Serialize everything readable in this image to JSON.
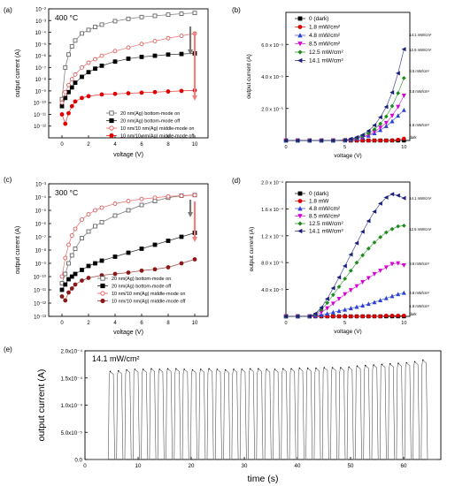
{
  "chart_data": [
    {
      "panel": "(a)",
      "type": "scatter",
      "annotation": "400 °C",
      "xlabel": "voltage (V)",
      "ylabel": "output current (A)",
      "xlim": [
        -1,
        11
      ],
      "ylim": [
        -13,
        -2
      ],
      "yscale": "log",
      "xticks": [
        0,
        2,
        4,
        6,
        8,
        10
      ],
      "xtick_labels": [
        "0",
        "2",
        "4",
        "6",
        "8",
        "10"
      ],
      "yticks": [
        -12,
        -11,
        -10,
        -9,
        -8,
        -7,
        -6,
        -5,
        -4,
        -3,
        -2
      ],
      "ytick_labels": [
        "10⁻¹²",
        "10⁻¹¹",
        "10⁻¹⁰",
        "10⁻⁹",
        "10⁻⁸",
        "10⁻⁷",
        "10⁻⁶",
        "10⁻⁵",
        "10⁻⁴",
        "10⁻³",
        "10⁻²"
      ],
      "legend_position": "bottom-right",
      "series": [
        {
          "name": "20 nm(Ag) bottom-mode on",
          "marker": "open-square",
          "color": "#555555",
          "x": [
            0,
            0.25,
            0.5,
            0.75,
            1,
            1.5,
            2,
            2.5,
            3,
            4,
            5,
            6,
            7,
            8,
            9,
            10
          ],
          "y": [
            -9.7,
            -7.0,
            -5.9,
            -5.2,
            -4.7,
            -4.1,
            -3.8,
            -3.55,
            -3.35,
            -3.05,
            -2.85,
            -2.7,
            -2.6,
            -2.5,
            -2.42,
            -2.35
          ]
        },
        {
          "name": "20 nm(Ag) bottom-mode off",
          "marker": "filled-square",
          "color": "#000000",
          "x": [
            0,
            0.25,
            0.5,
            0.75,
            1,
            1.5,
            2,
            2.5,
            3,
            4,
            5,
            6,
            7,
            8,
            9,
            10
          ],
          "y": [
            -10.3,
            -9.6,
            -9.1,
            -8.7,
            -8.3,
            -7.8,
            -7.4,
            -7.1,
            -6.85,
            -6.5,
            -6.25,
            -6.1,
            -6.0,
            -5.9,
            -5.85,
            -5.8
          ]
        },
        {
          "name": "10 nm/10 nm(Ag) middle-mode on",
          "marker": "open-circle",
          "color": "#e04a4a",
          "x": [
            0,
            0.25,
            0.5,
            0.75,
            1,
            1.5,
            2,
            2.5,
            3,
            4,
            5,
            6,
            7,
            8,
            9,
            10
          ],
          "y": [
            -10.0,
            -9.1,
            -8.5,
            -8.0,
            -7.6,
            -7.0,
            -6.6,
            -6.3,
            -6.0,
            -5.6,
            -5.3,
            -5.0,
            -4.75,
            -4.5,
            -4.3,
            -4.1
          ]
        },
        {
          "name": "10 nm/10 nm(Ag) middle-mode off",
          "marker": "filled-circle",
          "color": "#e00000",
          "x": [
            0,
            0.25,
            0.5,
            0.75,
            1,
            1.5,
            2,
            3,
            4,
            5,
            6,
            7,
            8,
            9,
            10
          ],
          "y": [
            -11.0,
            -11.8,
            -10.9,
            -10.3,
            -9.9,
            -9.6,
            -9.45,
            -9.3,
            -9.25,
            -9.2,
            -9.15,
            -9.1,
            -9.05,
            -9.0,
            -8.95
          ]
        }
      ]
    },
    {
      "panel": "(b)",
      "type": "scatter",
      "xlabel": "voltage (V)",
      "ylabel": "output current (A)",
      "xlim": [
        0,
        10.5
      ],
      "ylim": [
        0,
        8e-05
      ],
      "xticks": [
        0,
        5,
        10
      ],
      "xtick_labels": [
        "0",
        "5",
        "10"
      ],
      "yticks": [
        2e-05,
        4e-05,
        6e-05
      ],
      "ytick_labels": [
        "2.0 x 10⁻⁵",
        "4.0 x 10⁻⁵",
        "6.0 x 10⁻⁵"
      ],
      "legend_position": "top-left",
      "x": [
        0,
        1,
        2,
        3,
        4,
        5,
        5.5,
        6,
        6.5,
        7,
        7.5,
        8,
        8.5,
        9,
        9.5,
        10
      ],
      "series": [
        {
          "name": "0 (dark)",
          "end_label": "dark",
          "marker": "filled-square",
          "color": "#000000",
          "y": [
            0,
            0,
            0,
            0,
            0,
            0,
            0,
            0,
            0,
            0,
            0,
            0,
            0,
            0,
            0,
            0
          ]
        },
        {
          "name": "1.8 mW/cm²",
          "end_label": "1.8 mW/cm²",
          "marker": "filled-circle",
          "color": "#e00000",
          "y": [
            0,
            0,
            0,
            0,
            0,
            0,
            0,
            0,
            0,
            0,
            0,
            0,
            0,
            1e-07,
            5e-07,
            1.2e-06
          ]
        },
        {
          "name": "4.8 mW/cm²",
          "end_label": "4.8 mW/cm²",
          "marker": "filled-triangle-up",
          "color": "#2b40d8",
          "y": [
            0,
            0,
            0,
            0,
            0,
            1e-07,
            5e-07,
            1.2e-06,
            2e-06,
            3e-06,
            4.5e-06,
            6.5e-06,
            9e-06,
            1.2e-05,
            1.55e-05,
            1.9e-05
          ]
        },
        {
          "name": "8.5 mW/cm²",
          "end_label": "8.5 mW/cm²",
          "marker": "filled-triangle-down",
          "color": "#d600d6",
          "y": [
            0,
            0,
            0,
            0,
            0,
            1e-07,
            5e-07,
            1.2e-06,
            2.2e-06,
            3.5e-06,
            5.5e-06,
            8e-06,
            1.1e-05,
            1.55e-05,
            2.1e-05,
            2.8e-05
          ]
        },
        {
          "name": "12.5 mW/cm²",
          "end_label": "12.5 mW/cm²",
          "marker": "filled-diamond",
          "color": "#1a8a1a",
          "y": [
            0,
            0,
            0,
            0,
            0,
            2e-07,
            8e-07,
            1.6e-06,
            2.8e-06,
            4.5e-06,
            7e-06,
            1.05e-05,
            1.5e-05,
            2.15e-05,
            2.95e-05,
            3.9e-05
          ]
        },
        {
          "name": "14.1 mW/cm²",
          "end_label": "14.1 mW/cm²",
          "marker": "filled-triangle-left",
          "color": "#1a1f7a",
          "y": [
            0,
            0,
            0,
            0,
            0,
            3e-07,
            1e-06,
            2e-06,
            3.5e-06,
            6e-06,
            9.5e-06,
            1.45e-05,
            2.1e-05,
            3e-05,
            4.2e-05,
            5.7e-05
          ]
        }
      ]
    },
    {
      "panel": "(c)",
      "type": "scatter",
      "annotation": "300 °C",
      "xlabel": "voltage (V)",
      "ylabel": "output current (A)",
      "xlim": [
        -1,
        11
      ],
      "ylim": [
        -13,
        -3
      ],
      "yscale": "log",
      "xticks": [
        0,
        2,
        4,
        6,
        8,
        10
      ],
      "xtick_labels": [
        "0",
        "2",
        "4",
        "6",
        "8",
        "10"
      ],
      "yticks": [
        -13,
        -12,
        -11,
        -10,
        -9,
        -8,
        -7,
        -6,
        -5,
        -4,
        -3
      ],
      "ytick_labels": [
        "10⁻¹³",
        "10⁻¹²",
        "10⁻¹¹",
        "10⁻¹⁰",
        "10⁻⁹",
        "10⁻⁸",
        "10⁻⁷",
        "10⁻⁶",
        "10⁻⁵",
        "10⁻⁴",
        "10⁻³"
      ],
      "legend_position": "bottom-right",
      "series": [
        {
          "name": "20 nm(Ag) bottom-mode on",
          "marker": "open-square",
          "color": "#555555",
          "x": [
            0,
            0.25,
            0.5,
            0.75,
            1,
            1.5,
            2,
            2.5,
            3,
            4,
            5,
            6,
            7,
            8,
            9,
            10
          ],
          "y": [
            -10.5,
            -9.8,
            -9.0,
            -8.4,
            -7.9,
            -7.1,
            -6.6,
            -6.2,
            -5.9,
            -5.4,
            -5.0,
            -4.6,
            -4.3,
            -4.05,
            -3.9,
            -3.85
          ]
        },
        {
          "name": "20 nm(Ag) bottom-mode off",
          "marker": "filled-square",
          "color": "#000000",
          "x": [
            0,
            0.25,
            0.5,
            0.75,
            1,
            1.5,
            2,
            2.5,
            3,
            4,
            5,
            6,
            7,
            8,
            9,
            10
          ],
          "y": [
            -11.0,
            -10.6,
            -10.2,
            -10.0,
            -9.8,
            -9.5,
            -9.2,
            -9.0,
            -8.8,
            -8.5,
            -8.2,
            -7.9,
            -7.6,
            -7.3,
            -7.0,
            -6.7
          ]
        },
        {
          "name": "10 nm/10 nm(Ag) middle-mode on",
          "marker": "open-circle",
          "color": "#e04a4a",
          "x": [
            0,
            0.25,
            0.5,
            0.75,
            1,
            1.5,
            2,
            2.5,
            3,
            4,
            5,
            6,
            7,
            8,
            9,
            10
          ],
          "y": [
            -10.0,
            -8.6,
            -7.6,
            -6.9,
            -6.4,
            -5.7,
            -5.3,
            -5.0,
            -4.8,
            -4.5,
            -4.3,
            -4.15,
            -4.05,
            -3.95,
            -3.9,
            -3.85
          ]
        },
        {
          "name": "10 nm/10 nm(Ag) middle-mode off",
          "marker": "filled-circle",
          "color": "#8a1a1a",
          "x": [
            0,
            0.25,
            0.5,
            0.75,
            1,
            1.5,
            2,
            3,
            4,
            5,
            6,
            7,
            8,
            9,
            10
          ],
          "y": [
            -11.5,
            -11.8,
            -11.2,
            -10.9,
            -10.6,
            -10.3,
            -10.1,
            -9.9,
            -9.8,
            -9.7,
            -9.55,
            -9.45,
            -9.3,
            -9.0,
            -8.7
          ]
        }
      ]
    },
    {
      "panel": "(d)",
      "type": "scatter",
      "xlabel": "voltage (V)",
      "ylabel": "output current (A)",
      "xlim": [
        0,
        10.5
      ],
      "ylim": [
        0,
        0.0002
      ],
      "xticks": [
        0,
        5,
        10
      ],
      "xtick_labels": [
        "0",
        "5",
        "10"
      ],
      "yticks": [
        4e-05,
        8e-05,
        0.00012,
        0.00016,
        0.0002
      ],
      "ytick_labels": [
        "4.0 x 10⁻⁵",
        "8.0 x 10⁻⁵",
        "1.2 x 10⁻⁴",
        "1.6 x 10⁻⁴",
        "2.0 x 10⁻⁴"
      ],
      "legend_position": "top-left",
      "x": [
        0,
        1,
        2,
        2.5,
        3,
        3.5,
        4,
        4.5,
        5,
        5.5,
        6,
        6.5,
        7,
        7.5,
        8,
        8.5,
        9,
        9.5,
        10
      ],
      "series": [
        {
          "name": "0 (dark)",
          "end_label": "dark",
          "marker": "filled-square",
          "color": "#000000",
          "y": [
            0,
            0,
            0,
            0,
            0,
            0,
            0,
            0,
            0,
            0,
            0,
            0,
            0,
            0,
            0,
            0,
            0,
            0,
            0
          ]
        },
        {
          "name": "1.8 mW",
          "end_label": "1.8 mW/cm²",
          "marker": "filled-circle",
          "color": "#e00000",
          "y": [
            0,
            0,
            0,
            0,
            0,
            0,
            0,
            0,
            0,
            0,
            0,
            0,
            0,
            0,
            0,
            1e-06,
            1e-06,
            1e-06,
            1e-06
          ]
        },
        {
          "name": "4.8 mW/cm²",
          "end_label": "4.8 mW/cm²",
          "marker": "filled-triangle-up",
          "color": "#2b40d8",
          "y": [
            0,
            0,
            0,
            1e-06,
            2e-06,
            4e-06,
            6e-06,
            8e-06,
            1e-05,
            1.2e-05,
            1.4e-05,
            1.6e-05,
            1.85e-05,
            2.1e-05,
            2.4e-05,
            2.7e-05,
            3e-05,
            3.3e-05,
            3.5e-05
          ]
        },
        {
          "name": "8.5 mW/cm²",
          "end_label": "8.5 mW/cm²",
          "marker": "filled-triangle-down",
          "color": "#d600d6",
          "y": [
            0,
            0,
            0,
            2e-06,
            6e-06,
            1.2e-05,
            1.9e-05,
            2.6e-05,
            3.3e-05,
            3.9e-05,
            4.5e-05,
            5.1e-05,
            5.7e-05,
            6.3e-05,
            6.8e-05,
            7.3e-05,
            7.8e-05,
            7.9e-05,
            7.6e-05
          ]
        },
        {
          "name": "12.5 mW/cm²",
          "end_label": "12.5 mW/cm²",
          "marker": "filled-diamond",
          "color": "#1a8a1a",
          "y": [
            0,
            0,
            0,
            3e-06,
            1e-05,
            2e-05,
            3.2e-05,
            4.4e-05,
            5.6e-05,
            6.8e-05,
            8e-05,
            9.1e-05,
            0.000101,
            0.00011,
            0.000118,
            0.000125,
            0.00013,
            0.000134,
            0.000135
          ]
        },
        {
          "name": "14.1 mW/cm²",
          "end_label": "14.1 mW/cm²",
          "marker": "filled-triangle-left",
          "color": "#1a1f7a",
          "y": [
            0,
            0,
            0,
            4e-06,
            1.3e-05,
            2.6e-05,
            4.2e-05,
            5.8e-05,
            7.5e-05,
            9.2e-05,
            0.000109,
            0.000126,
            0.000142,
            0.000156,
            0.000168,
            0.000177,
            0.000182,
            0.00018,
            0.000176
          ]
        }
      ]
    },
    {
      "panel": "(e)",
      "type": "line",
      "annotation": "14.1 mW/cm²",
      "xlabel": "time (s)",
      "ylabel": "output current (A)",
      "xlim": [
        0,
        67
      ],
      "ylim": [
        0,
        0.0002
      ],
      "xticks": [
        0,
        10,
        20,
        30,
        40,
        50,
        60
      ],
      "xtick_labels": [
        "0",
        "10",
        "20",
        "30",
        "40",
        "50",
        "60"
      ],
      "yticks": [
        0,
        5e-05,
        0.0001,
        0.00015,
        0.0002
      ],
      "ytick_labels": [
        "0.0",
        "5.0x10⁻⁵",
        "1.0x10⁻⁴",
        "1.5x10⁻⁴",
        "2.0x10⁻⁴"
      ],
      "color": "#555555",
      "pulses": {
        "start_times": [
          4.4,
          5.95,
          7.5,
          9.05,
          10.6,
          12.15,
          13.7,
          15.25,
          16.8,
          18.35,
          19.9,
          21.45,
          23.0,
          24.55,
          26.1,
          27.65,
          29.2,
          30.75,
          32.3,
          33.85,
          35.4,
          36.95,
          38.5,
          40.05,
          41.6,
          43.15,
          44.7,
          46.25,
          47.8,
          49.35,
          50.9,
          52.45,
          54.0,
          55.55,
          57.1,
          58.65,
          60.2,
          61.75,
          63.3
        ],
        "peak_values": [
          0.000162,
          0.000163,
          0.000165,
          0.000166,
          0.000166,
          0.000167,
          0.000166,
          0.000167,
          0.000167,
          0.000166,
          0.000165,
          0.000166,
          0.000167,
          0.000166,
          0.000165,
          0.000166,
          0.000166,
          0.000167,
          0.000167,
          0.000166,
          0.000166,
          0.000167,
          0.000167,
          0.000168,
          0.000168,
          0.000168,
          0.000169,
          0.000169,
          0.000169,
          0.00017,
          0.000172,
          0.000173,
          0.000174,
          0.000175,
          0.000176,
          0.000177,
          0.000178,
          0.00018,
          0.000183
        ],
        "duration": 1.2
      }
    }
  ]
}
